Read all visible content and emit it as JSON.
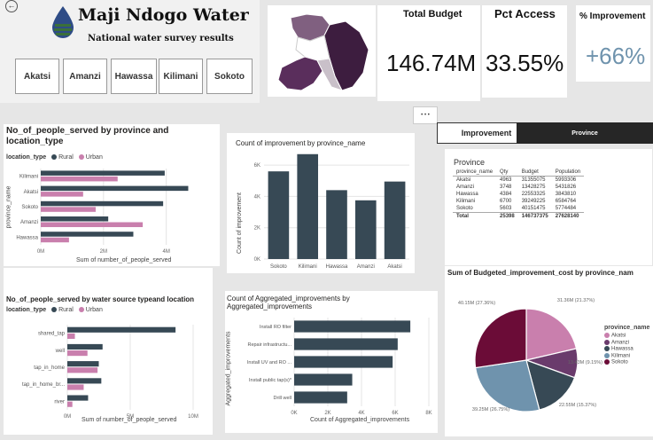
{
  "header": {
    "title": "Maji Ndogo Water",
    "subtitle": "National water survey results",
    "provinces": [
      "Akatsi",
      "Amanzi",
      "Hawassa",
      "Kilimani",
      "Sokoto"
    ]
  },
  "kpis": {
    "total_budget": {
      "label": "Total Budget",
      "value": "146.74M"
    },
    "pct_access": {
      "label": "Pct Access",
      "value": "33.55%"
    },
    "pct_improvement": {
      "label": "% Improvement",
      "value": "+66%"
    }
  },
  "tabs": {
    "improvement": "Improvement",
    "province": "Province"
  },
  "more_options": "• • •",
  "colors": {
    "dark": "#374955",
    "pink": "#c97fad",
    "map_dark": "#3d1d3f",
    "map_mid": "#806080",
    "map_light": "#c9c0c9"
  },
  "matrix": {
    "title": "Province",
    "columns": [
      "province_name",
      "Qty",
      "Budget",
      "Population"
    ],
    "rows": [
      [
        "Akatsi",
        "4963",
        "31355075",
        "5993306"
      ],
      [
        "Amanzi",
        "3748",
        "13428275",
        "5431826"
      ],
      [
        "Hawassa",
        "4384",
        "22553325",
        "3843810"
      ],
      [
        "Kilimani",
        "6700",
        "39249225",
        "6584764"
      ],
      [
        "Sokoto",
        "5603",
        "40151475",
        "5774484"
      ]
    ],
    "total": [
      "Total",
      "25398",
      "146737375",
      "27628140"
    ]
  },
  "chart_data": [
    {
      "id": "people_by_province",
      "type": "bar",
      "orientation": "horizontal",
      "title": "No_of_people_served by province and location_type",
      "legend_title": "location_type",
      "categories": [
        "Kilimani",
        "Akatsi",
        "Sokoto",
        "Amanzi",
        "Hawassa"
      ],
      "series": [
        {
          "name": "Rural",
          "values": [
            3950000,
            4700000,
            3900000,
            2150000,
            2950000
          ]
        },
        {
          "name": "Urban",
          "values": [
            2450000,
            1350000,
            1750000,
            3250000,
            900000
          ]
        }
      ],
      "xlabel": "Sum of number_of_people_served",
      "ylabel": "province_name",
      "xlim": [
        0,
        4800000
      ],
      "xticks": [
        "0M",
        "2M",
        "4M"
      ],
      "xtick_values": [
        0,
        2000000,
        4000000
      ]
    },
    {
      "id": "improvement_count",
      "type": "bar",
      "orientation": "vertical",
      "title": "Count of improvement by province_name",
      "categories": [
        "Sokoto",
        "Kilimani",
        "Hawassa",
        "Amanzi",
        "Akatsi"
      ],
      "values": [
        5600,
        6700,
        4400,
        3750,
        4950
      ],
      "xlabel": "province_name",
      "ylabel": "Count of improvement",
      "ylim": [
        0,
        6800
      ],
      "yticks": [
        "0K",
        "2K",
        "4K",
        "6K"
      ],
      "ytick_values": [
        0,
        2000,
        4000,
        6000
      ]
    },
    {
      "id": "people_by_source",
      "type": "bar",
      "orientation": "horizontal",
      "title": "No_of_people_served by water source typeand location",
      "legend_title": "location_type",
      "categories": [
        "shared_tap",
        "well",
        "tap_in_home",
        "tap_in_home_br...",
        "river"
      ],
      "series": [
        {
          "name": "Rural",
          "values": [
            8600000,
            2800000,
            2500000,
            2700000,
            1650000
          ]
        },
        {
          "name": "Urban",
          "values": [
            600000,
            1600000,
            2400000,
            1300000,
            400000
          ]
        }
      ],
      "xlabel": "Sum of number_of_people_served",
      "ylabel": "type_of_water_source",
      "xlim": [
        0,
        10000000
      ],
      "xticks": [
        "0M",
        "5M",
        "10M"
      ],
      "xtick_values": [
        0,
        5000000,
        10000000
      ]
    },
    {
      "id": "aggregated_improvements",
      "type": "bar",
      "orientation": "horizontal",
      "title": "Count of Aggregated_improvements by Aggregated_improvements",
      "categories": [
        "Install RO filter",
        "Repair infrastructu...",
        "Install UV and RO ...",
        "Install public tap(s)*",
        "Drill well"
      ],
      "values": [
        6900,
        6150,
        5850,
        3450,
        3150
      ],
      "xlabel": "Count of Aggregated_improvements",
      "ylabel": "Aggregated_improvements",
      "xlim": [
        0,
        8000
      ],
      "xticks": [
        "0K",
        "2K",
        "4K",
        "6K",
        "8K"
      ],
      "xtick_values": [
        0,
        2000,
        4000,
        6000,
        8000
      ]
    },
    {
      "id": "budget_pie",
      "type": "pie",
      "title": "Sum of Budgeted_improvement_cost by province_nam",
      "legend_title": "province_name",
      "slices": [
        {
          "name": "Akatsi",
          "value": 31.36,
          "label": "31.36M (21.37%)",
          "color": "#c97fad"
        },
        {
          "name": "Amanzi",
          "value": 13.43,
          "label": "13.43M (9.15%)",
          "color": "#6a3b6c"
        },
        {
          "name": "Hawassa",
          "value": 22.55,
          "label": "22.55M (15.37%)",
          "color": "#374955"
        },
        {
          "name": "Kilimani",
          "value": 39.25,
          "label": "39.25M (26.75%)",
          "color": "#6f93ad"
        },
        {
          "name": "Sokoto",
          "value": 40.15,
          "label": "40.15M (27.36%)",
          "color": "#6b0c37"
        }
      ]
    }
  ]
}
